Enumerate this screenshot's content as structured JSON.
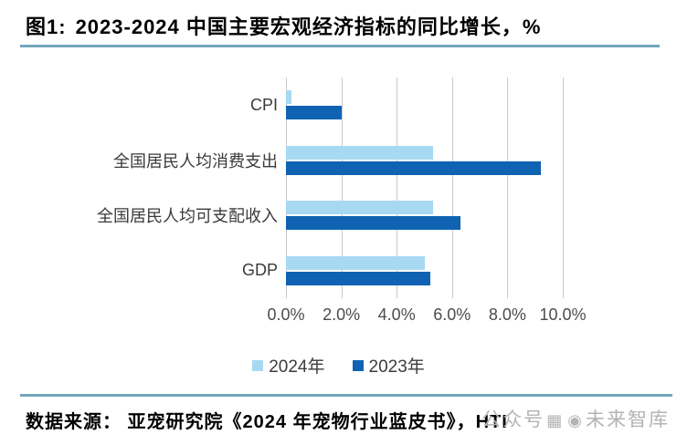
{
  "title": {
    "prefix": "图1:",
    "text": "2023-2024 中国主要宏观经济指标的同比增长，%"
  },
  "chart_data": {
    "type": "bar",
    "orientation": "horizontal",
    "title": "图1: 2023-2024 中国主要宏观经济指标的同比增长，%",
    "categories": [
      "CPI",
      "全国居民人均消费支出",
      "全国居民人均可支配收入",
      "GDP"
    ],
    "series": [
      {
        "name": "2024年",
        "color": "#a8d9f2",
        "values": [
          0.2,
          5.3,
          5.3,
          5.0
        ]
      },
      {
        "name": "2023年",
        "color": "#1063b2",
        "values": [
          2.0,
          9.2,
          6.3,
          5.2
        ]
      }
    ],
    "x_ticks": [
      "0.0%",
      "2.0%",
      "4.0%",
      "6.0%",
      "8.0%",
      "10.0%"
    ],
    "xlim": [
      0,
      10
    ],
    "xlabel": "",
    "ylabel": "",
    "grid": true,
    "legend_position": "bottom"
  },
  "source": {
    "text": "数据来源：  亚宠研究院《2024 年宠物行业蓝皮书》，HTI"
  },
  "watermark": {
    "prefix": "公众号",
    "qr_icon": "▦",
    "at_icon": "◉",
    "name": "未来智库"
  },
  "colors": {
    "rule": "#72a6bc",
    "gridline": "#c9c9c9",
    "series_2024": "#a8d9f2",
    "series_2023": "#1063b2"
  }
}
